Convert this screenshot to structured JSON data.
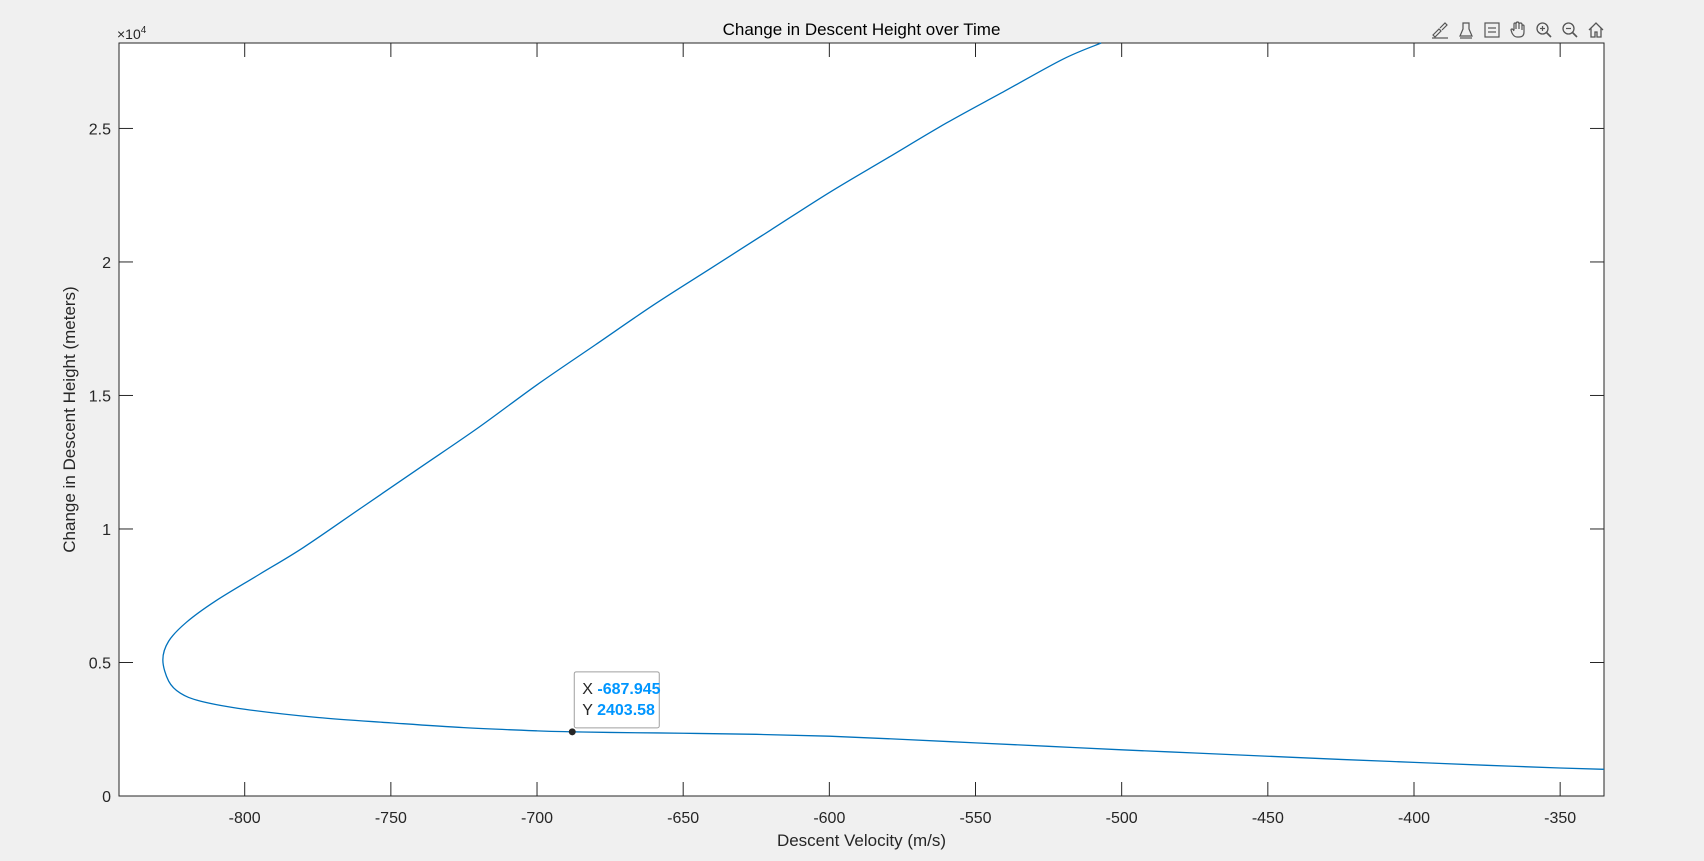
{
  "toolbar": {
    "icons": [
      "brush-icon",
      "data-tips-icon",
      "legend-icon",
      "pan-hand-icon",
      "zoom-in-icon",
      "zoom-out-icon",
      "home-icon"
    ]
  },
  "colors": {
    "figure_bg": "#f0f0f0",
    "axes_bg": "#ffffff",
    "line": "#0072bd",
    "datatip_value": "#0096ff",
    "text": "#262626"
  },
  "chart_data": {
    "type": "line",
    "title": "Change in Descent Height over Time",
    "xlabel": "Descent Velocity (m/s)",
    "ylabel": "Change in Descent Height (meters)",
    "y_exponent_label": "×10",
    "y_exponent_power": "4",
    "xlim": [
      -843,
      -335
    ],
    "ylim": [
      0,
      28200
    ],
    "xticks": [
      -800,
      -750,
      -700,
      -650,
      -600,
      -550,
      -500,
      -450,
      -400,
      -350
    ],
    "xtick_labels": [
      "-800",
      "-750",
      "-700",
      "-650",
      "-600",
      "-550",
      "-500",
      "-450",
      "-400",
      "-350"
    ],
    "yticks": [
      0,
      5000,
      10000,
      15000,
      20000,
      25000
    ],
    "ytick_labels": [
      "0",
      "0.5",
      "1",
      "1.5",
      "2",
      "2.5"
    ],
    "grid": false,
    "series": [
      {
        "x": [
          -335,
          -350,
          -375,
          -400,
          -425,
          -450,
          -475,
          -500,
          -525,
          -550,
          -575,
          -600,
          -625,
          -650,
          -675,
          -688,
          -700,
          -725,
          -750,
          -775,
          -800,
          -815,
          -822,
          -826,
          -828,
          -826,
          -820,
          -810,
          -795,
          -780,
          -760,
          -740,
          -720,
          -700,
          -680,
          -660,
          -640,
          -620,
          -600,
          -580,
          -560,
          -540,
          -520,
          -507
        ],
        "y": [
          1000,
          1050,
          1150,
          1260,
          1370,
          1490,
          1610,
          1730,
          1860,
          1990,
          2120,
          2240,
          2310,
          2350,
          2380,
          2404,
          2440,
          2560,
          2740,
          2940,
          3250,
          3550,
          3850,
          4300,
          5100,
          5800,
          6500,
          7300,
          8300,
          9300,
          10800,
          12300,
          13800,
          15400,
          16900,
          18400,
          19800,
          21200,
          22600,
          23900,
          25200,
          26400,
          27600,
          28200
        ]
      }
    ],
    "datatip": {
      "x": -687.945,
      "y": 2403.58,
      "x_label": "X",
      "y_label": "Y",
      "x_text": "-687.945",
      "y_text": "2403.58"
    }
  }
}
